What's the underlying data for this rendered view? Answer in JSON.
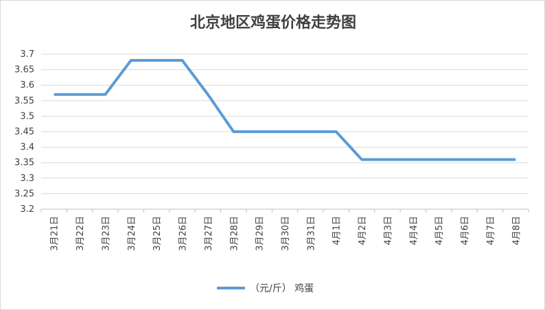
{
  "chart_data": {
    "type": "line",
    "title": "北京地区鸡蛋价格走势图",
    "categories": [
      "3月21日",
      "3月22日",
      "3月23日",
      "3月24日",
      "3月25日",
      "3月26日",
      "3月27日",
      "3月28日",
      "3月29日",
      "3月30日",
      "3月31日",
      "4月1日",
      "4月2日",
      "4月3日",
      "4月4日",
      "4月5日",
      "4月6日",
      "4月7日",
      "4月8日"
    ],
    "series": [
      {
        "name": "（元/斤） 鸡蛋",
        "color": "#5b9bd5",
        "values": [
          3.57,
          3.57,
          3.57,
          3.68,
          3.68,
          3.68,
          3.57,
          3.45,
          3.45,
          3.45,
          3.45,
          3.45,
          3.36,
          3.36,
          3.36,
          3.36,
          3.36,
          3.36,
          3.36
        ]
      }
    ],
    "ylim": [
      3.2,
      3.7
    ],
    "yticks": [
      "3.2",
      "3.25",
      "3.3",
      "3.35",
      "3.4",
      "3.45",
      "3.5",
      "3.55",
      "3.6",
      "3.65",
      "3.7"
    ],
    "grid": true,
    "legend": "bottom"
  }
}
